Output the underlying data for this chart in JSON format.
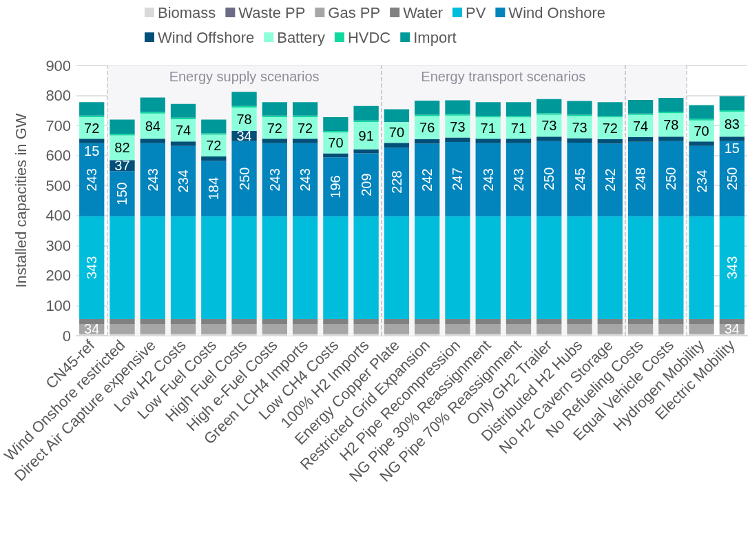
{
  "chart_data": {
    "type": "bar",
    "stacked": true,
    "ylabel": "Installed capacities in GW",
    "ylim": [
      0,
      900
    ],
    "yticks": [
      0,
      100,
      200,
      300,
      400,
      500,
      600,
      700,
      800,
      900
    ],
    "grid": "y",
    "legend": "top",
    "categories": [
      "CN45-ref",
      "Wind Onshore restricted",
      "Direct Air Capture expensive",
      "Low H2 Costs",
      "Low Fuel Costs",
      "High Fuel Costs",
      "High e-Fuel Costs",
      "Green LCH4 Imports",
      "Low CH4 Costs",
      "100% H2 Imports",
      "Energy Copper Plate",
      "Restricted Grid Expansion",
      "H2 Pipe Recompression",
      "NG Pipe 30% Reassignment",
      "NG Pipe 70% Reassignment",
      "Only GH2 Trailer",
      "Distributed H2 Hubs",
      "No H2 Cavern Storage",
      "No Refueling Costs",
      "Equal Vehicle Costs",
      "Hydrogen Mobility",
      "Electric Mobility"
    ],
    "series": [
      {
        "name": "Biomass",
        "color": "#d9d9d9",
        "values": [
          5,
          5,
          5,
          5,
          5,
          5,
          5,
          5,
          5,
          5,
          5,
          5,
          5,
          5,
          5,
          5,
          5,
          5,
          5,
          5,
          5,
          5
        ]
      },
      {
        "name": "Waste PP",
        "color": "#6b6b86",
        "values": [
          0,
          0,
          0,
          0,
          0,
          0,
          0,
          0,
          0,
          0,
          0,
          0,
          0,
          0,
          0,
          0,
          0,
          0,
          0,
          0,
          0,
          0
        ]
      },
      {
        "name": "Gas PP",
        "color": "#a6a6a6",
        "values": [
          34,
          34,
          34,
          34,
          34,
          34,
          34,
          34,
          34,
          34,
          34,
          34,
          34,
          34,
          34,
          34,
          34,
          34,
          34,
          34,
          34,
          34
        ],
        "value_labels": [
          "34",
          null,
          null,
          null,
          null,
          null,
          null,
          null,
          null,
          null,
          null,
          null,
          null,
          null,
          null,
          null,
          null,
          null,
          null,
          null,
          null,
          "34"
        ]
      },
      {
        "name": "Water",
        "color": "#808080",
        "values": [
          16,
          16,
          16,
          16,
          16,
          16,
          16,
          16,
          16,
          16,
          16,
          16,
          16,
          16,
          16,
          16,
          16,
          16,
          16,
          16,
          16,
          16
        ]
      },
      {
        "name": "PV",
        "color": "#00bedb",
        "values": [
          343,
          343,
          343,
          343,
          343,
          343,
          343,
          343,
          343,
          343,
          343,
          343,
          343,
          343,
          343,
          343,
          343,
          343,
          343,
          343,
          343,
          343
        ],
        "value_labels": [
          "343",
          null,
          null,
          null,
          null,
          null,
          null,
          null,
          null,
          null,
          null,
          null,
          null,
          null,
          null,
          null,
          null,
          null,
          null,
          null,
          null,
          "343"
        ]
      },
      {
        "name": "Wind Onshore",
        "color": "#0284bd",
        "values": [
          243,
          150,
          243,
          234,
          184,
          250,
          243,
          243,
          196,
          209,
          228,
          242,
          247,
          243,
          243,
          250,
          245,
          242,
          248,
          250,
          234,
          250
        ],
        "value_labels": [
          "243",
          "150",
          "243",
          "234",
          "184",
          "250",
          "243",
          "243",
          "196",
          "209",
          "228",
          "242",
          "247",
          "243",
          "243",
          "250",
          "245",
          "242",
          "248",
          "250",
          "234",
          "250"
        ]
      },
      {
        "name": "Wind Offshore",
        "color": "#024f77",
        "values": [
          15,
          37,
          15,
          15,
          15,
          34,
          15,
          15,
          13,
          14,
          16,
          15,
          15,
          15,
          15,
          15,
          15,
          15,
          15,
          15,
          15,
          15
        ],
        "value_labels": [
          "15",
          "37",
          null,
          null,
          null,
          "34",
          null,
          null,
          null,
          null,
          null,
          null,
          null,
          null,
          null,
          null,
          null,
          null,
          null,
          null,
          null,
          "15"
        ]
      },
      {
        "name": "Battery",
        "color": "#8cffdb",
        "values": [
          72,
          82,
          84,
          74,
          72,
          78,
          72,
          72,
          70,
          91,
          70,
          76,
          73,
          71,
          71,
          73,
          73,
          72,
          74,
          78,
          70,
          83
        ],
        "value_labels": [
          "72",
          "82",
          "84",
          "74",
          "72",
          "78",
          "72",
          "72",
          "70",
          "91",
          "70",
          "76",
          "73",
          "71",
          "71",
          "73",
          "73",
          "72",
          "74",
          "78",
          "70",
          "83"
        ]
      },
      {
        "name": "HVDC",
        "color": "#10d9a0",
        "values": [
          5,
          5,
          5,
          5,
          5,
          5,
          5,
          5,
          5,
          5,
          0,
          5,
          5,
          5,
          5,
          5,
          5,
          5,
          5,
          5,
          5,
          5
        ]
      },
      {
        "name": "Import",
        "color": "#009999",
        "values": [
          45,
          48,
          48,
          46,
          46,
          47,
          45,
          45,
          46,
          48,
          42,
          47,
          46,
          46,
          46,
          47,
          46,
          46,
          45,
          46,
          46,
          47
        ]
      }
    ],
    "bands": [
      {
        "axis": "x",
        "from": "Wind Onshore restricted",
        "to": "100% H2 Imports",
        "label": "Energy supply scenarios",
        "color": "#f6f6f9"
      },
      {
        "axis": "x",
        "from": "Energy Copper Plate",
        "to": "No H2 Cavern Storage",
        "label": "Energy transport scenarios",
        "color": "#f6f6f9"
      },
      {
        "axis": "x",
        "from": "No Refueling Costs",
        "to": "Equal Vehicle Costs",
        "label": null,
        "color": "#f6f6f9"
      }
    ]
  }
}
